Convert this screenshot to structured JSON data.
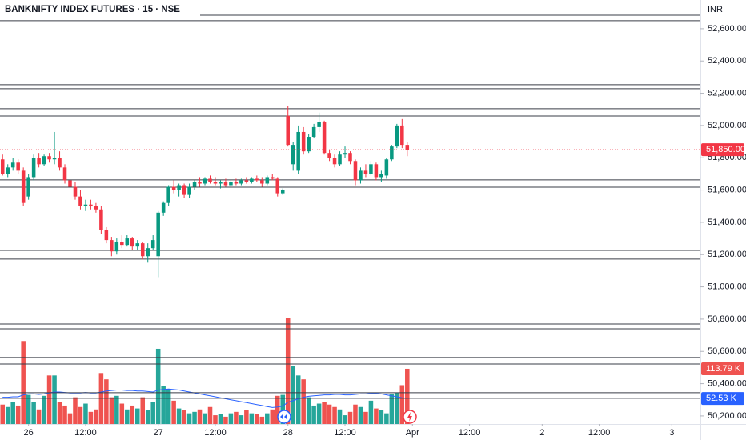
{
  "chart_data": {
    "type": "candlestick",
    "title": "BANKNIFTY INDEX FUTURES · 15 · NSE",
    "currency": "INR",
    "up_color": "#089981",
    "down_color": "#f23645",
    "volume_up_color": "#26a69a",
    "volume_down_color": "#ef5350",
    "ma_color": "#2962ff",
    "ylim": [
      50150,
      52778
    ],
    "yticks": [
      {
        "value": 50200,
        "label": "50,200.00"
      },
      {
        "value": 50400,
        "label": "50,400.00"
      },
      {
        "value": 50600,
        "label": "50,600.00"
      },
      {
        "value": 50800,
        "label": "50,800.00"
      },
      {
        "value": 51000,
        "label": "51,000.00"
      },
      {
        "value": 51200,
        "label": "51,200.00"
      },
      {
        "value": 51400,
        "label": "51,400.00"
      },
      {
        "value": 51600,
        "label": "51,600.00"
      },
      {
        "value": 51800,
        "label": "51,800.00"
      },
      {
        "value": 52000,
        "label": "52,000.00"
      },
      {
        "value": 52200,
        "label": "52,200.00"
      },
      {
        "value": 52400,
        "label": "52,400.00"
      },
      {
        "value": 52600,
        "label": "52,600.00"
      }
    ],
    "xlim": [
      -0.5,
      134.5
    ],
    "xticks": [
      {
        "value": 5,
        "label": "26"
      },
      {
        "value": 16,
        "label": "12:00"
      },
      {
        "value": 30,
        "label": "27"
      },
      {
        "value": 41,
        "label": "12:00"
      },
      {
        "value": 55,
        "label": "28"
      },
      {
        "value": 66,
        "label": "12:00"
      },
      {
        "value": 79,
        "label": "Apr"
      },
      {
        "value": 90,
        "label": "12:00"
      },
      {
        "value": 104,
        "label": "2"
      },
      {
        "value": 115,
        "label": "12:00"
      },
      {
        "value": 129,
        "label": "3"
      }
    ],
    "volume_lim": [
      0,
      300
    ],
    "hlines": [
      52684,
      52650,
      52253,
      52228,
      52104,
      52059,
      51663,
      51618,
      51226,
      51172,
      50770,
      50740,
      50562,
      50522,
      50344,
      50309
    ],
    "open": [
      51790,
      51700,
      51740,
      51770,
      51720,
      51560,
      51680,
      51800,
      51760,
      51810,
      51790,
      51800,
      51740,
      51660,
      51620,
      51560,
      51500,
      51510,
      51500,
      51480,
      51350,
      51290,
      51220,
      51280,
      51260,
      51300,
      51250,
      51270,
      51190,
      51240,
      51190,
      51460,
      51520,
      51620,
      51600,
      51630,
      51570,
      51620,
      51650,
      51640,
      51670,
      51650,
      51640,
      51650,
      51630,
      51650,
      51640,
      51660,
      51650,
      51670,
      51660,
      51640,
      51680,
      51670,
      51580,
      52060,
      51760,
      51720,
      51960,
      51840,
      51930,
      51990,
      52020,
      51830,
      51800,
      51760,
      51820,
      51830,
      51780,
      51660,
      51720,
      51700,
      51760,
      51680,
      51690,
      51790,
      51870,
      52000,
      51880
    ],
    "high": [
      51820,
      51760,
      51800,
      51790,
      51740,
      51700,
      51820,
      51830,
      51820,
      51830,
      51960,
      51840,
      51760,
      51700,
      51650,
      51600,
      51540,
      51540,
      51520,
      51500,
      51370,
      51310,
      51300,
      51320,
      51320,
      51310,
      51290,
      51280,
      51270,
      51320,
      51470,
      51530,
      51630,
      51660,
      51640,
      51640,
      51640,
      51660,
      51680,
      51680,
      51690,
      51680,
      51660,
      51670,
      51660,
      51670,
      51670,
      51680,
      51680,
      51690,
      51680,
      51690,
      51700,
      51680,
      51610,
      52120,
      51900,
      52000,
      51990,
      51950,
      52010,
      52080,
      52030,
      51850,
      51820,
      51840,
      51870,
      51840,
      51790,
      51740,
      51760,
      51780,
      51770,
      51720,
      51800,
      51880,
      52010,
      52040,
      51900
    ],
    "low": [
      51690,
      51680,
      51720,
      51700,
      51500,
      51540,
      51660,
      51740,
      51750,
      51770,
      51760,
      51720,
      51640,
      51600,
      51540,
      51480,
      51470,
      51480,
      51460,
      51330,
      51270,
      51190,
      51200,
      51240,
      51250,
      51230,
      51230,
      51170,
      51150,
      51230,
      51060,
      51440,
      51500,
      51580,
      51560,
      51550,
      51550,
      51600,
      51620,
      51630,
      51640,
      51630,
      51610,
      51620,
      51620,
      51630,
      51630,
      51640,
      51640,
      51650,
      51620,
      51630,
      51660,
      51560,
      51570,
      51870,
      51720,
      51700,
      51820,
      51830,
      51920,
      51960,
      51820,
      51780,
      51740,
      51750,
      51800,
      51760,
      51630,
      51640,
      51680,
      51690,
      51660,
      51650,
      51670,
      51780,
      51860,
      51860,
      51810
    ],
    "close": [
      51700,
      51740,
      51770,
      51720,
      51520,
      51680,
      51800,
      51760,
      51810,
      51790,
      51800,
      51740,
      51660,
      51620,
      51560,
      51500,
      51510,
      51500,
      51480,
      51350,
      51290,
      51220,
      51280,
      51260,
      51300,
      51250,
      51270,
      51190,
      51240,
      51290,
      51460,
      51520,
      51620,
      51600,
      51630,
      51570,
      51620,
      51650,
      51640,
      51670,
      51650,
      51640,
      51650,
      51630,
      51650,
      51640,
      51660,
      51650,
      51670,
      51660,
      51640,
      51680,
      51670,
      51580,
      51600,
      51880,
      51880,
      51960,
      51840,
      51930,
      51990,
      52020,
      51830,
      51800,
      51760,
      51820,
      51830,
      51780,
      51660,
      51720,
      51700,
      51760,
      51680,
      51700,
      51790,
      51870,
      52000,
      51880,
      51850
    ],
    "volume": [
      40,
      35,
      45,
      38,
      171,
      60,
      45,
      30,
      58,
      100,
      100,
      45,
      38,
      22,
      55,
      35,
      42,
      25,
      30,
      105,
      92,
      55,
      58,
      42,
      30,
      38,
      32,
      55,
      28,
      45,
      155,
      78,
      72,
      48,
      32,
      28,
      22,
      25,
      30,
      22,
      35,
      18,
      20,
      15,
      22,
      25,
      18,
      28,
      22,
      20,
      15,
      22,
      30,
      58,
      60,
      219,
      120,
      100,
      92,
      55,
      38,
      42,
      45,
      40,
      35,
      30,
      18,
      25,
      40,
      35,
      25,
      48,
      32,
      28,
      22,
      62,
      65,
      80,
      113.79
    ],
    "volume_ma": [
      55,
      55,
      56,
      56,
      60,
      62,
      62,
      61,
      62,
      64,
      66,
      66,
      65,
      64,
      64,
      64,
      65,
      64,
      64,
      66,
      68,
      69,
      70,
      70,
      69,
      69,
      68,
      68,
      67,
      66,
      70,
      71,
      72,
      71,
      70,
      68,
      66,
      64,
      62,
      60,
      58,
      56,
      54,
      52,
      50,
      48,
      46,
      44,
      42,
      40,
      38,
      36,
      34,
      35,
      37,
      45,
      48,
      52,
      55,
      57,
      58,
      59,
      60,
      60,
      61,
      61,
      60,
      60,
      61,
      62,
      62,
      63,
      63,
      62,
      60,
      58,
      56,
      54,
      52.53
    ],
    "last_price": {
      "value": 51850,
      "label": "51,850.00"
    },
    "last_volume": {
      "value": 113.79,
      "label": "113.79 K"
    },
    "last_volume_ma": {
      "value": 52.53,
      "label": "52.53 K"
    }
  }
}
